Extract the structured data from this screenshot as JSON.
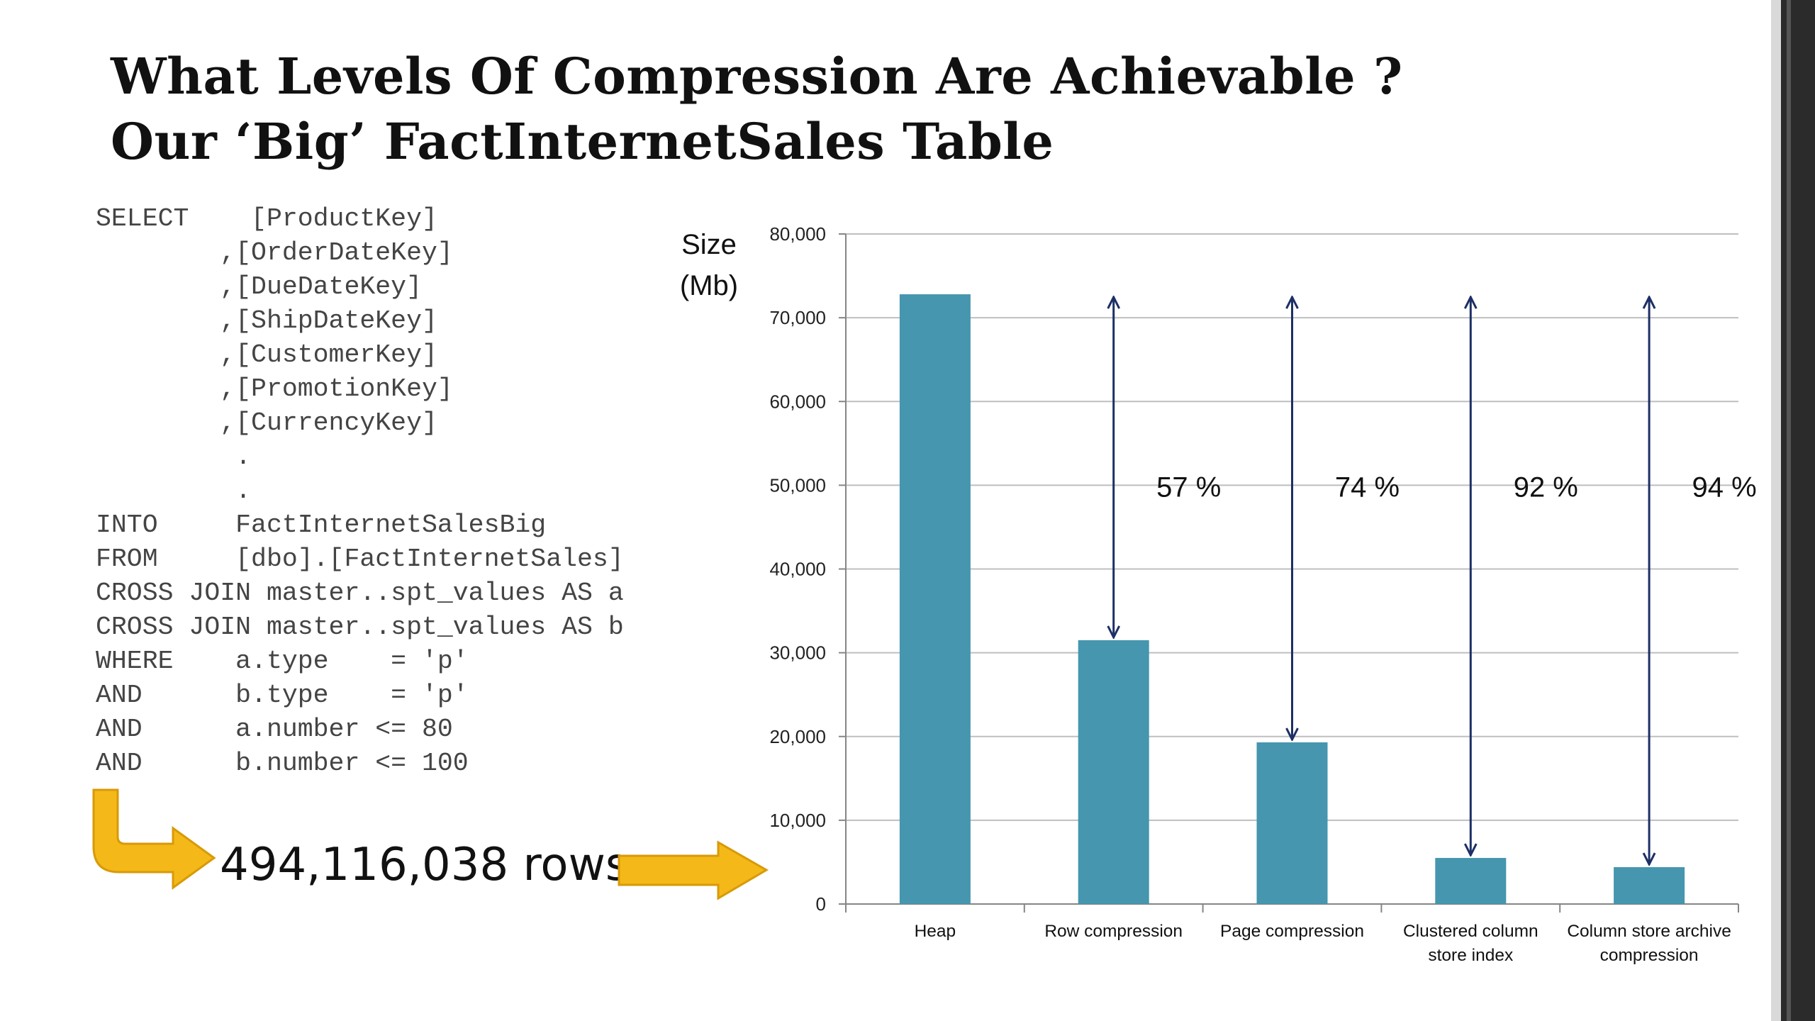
{
  "slide": {
    "title_lines": [
      "What Levels Of Compression Are Achievable ?",
      "Our ‘Big’ FactInternetSales Table"
    ],
    "sql_lines": [
      "SELECT    [ProductKey]",
      "        ,[OrderDateKey]",
      "        ,[DueDateKey]",
      "        ,[ShipDateKey]",
      "        ,[CustomerKey]",
      "        ,[PromotionKey]",
      "        ,[CurrencyKey]",
      "         .",
      "         .",
      "INTO     FactInternetSalesBig",
      "FROM     [dbo].[FactInternetSales]",
      "CROSS JOIN master..spt_values AS a",
      "CROSS JOIN master..spt_values AS b",
      "WHERE    a.type    = 'p'",
      "AND      b.type    = 'p'",
      "AND      a.number <= 80",
      "AND      b.number <= 100"
    ],
    "rows_label": "494,116,038 rows"
  },
  "colors": {
    "bar": "#4596AE",
    "arrow_line": "#1C2F66",
    "callout_arrow": "#F4B818",
    "gridline": "#BFBFBF",
    "axis": "#868686"
  },
  "chart_data": {
    "type": "bar",
    "ylabel_lines": [
      "Size",
      "(Mb)"
    ],
    "ylim": [
      0,
      80000
    ],
    "yticks": [
      0,
      10000,
      20000,
      30000,
      40000,
      50000,
      60000,
      70000,
      80000
    ],
    "ytick_labels": [
      "0",
      "10,000",
      "20,000",
      "30,000",
      "40,000",
      "50,000",
      "60,000",
      "70,000",
      "80,000"
    ],
    "grid": true,
    "categories": [
      [
        "Heap"
      ],
      [
        "Row compression"
      ],
      [
        "Page compression"
      ],
      [
        "Clustered column",
        "store index"
      ],
      [
        "Column store archive",
        "compression"
      ]
    ],
    "values": [
      72800,
      31500,
      19300,
      5500,
      4400
    ],
    "reductions": [
      {
        "category_index": 1,
        "label": "57 %"
      },
      {
        "category_index": 2,
        "label": "74 %"
      },
      {
        "category_index": 3,
        "label": "92 %"
      },
      {
        "category_index": 4,
        "label": "94 %"
      }
    ]
  }
}
